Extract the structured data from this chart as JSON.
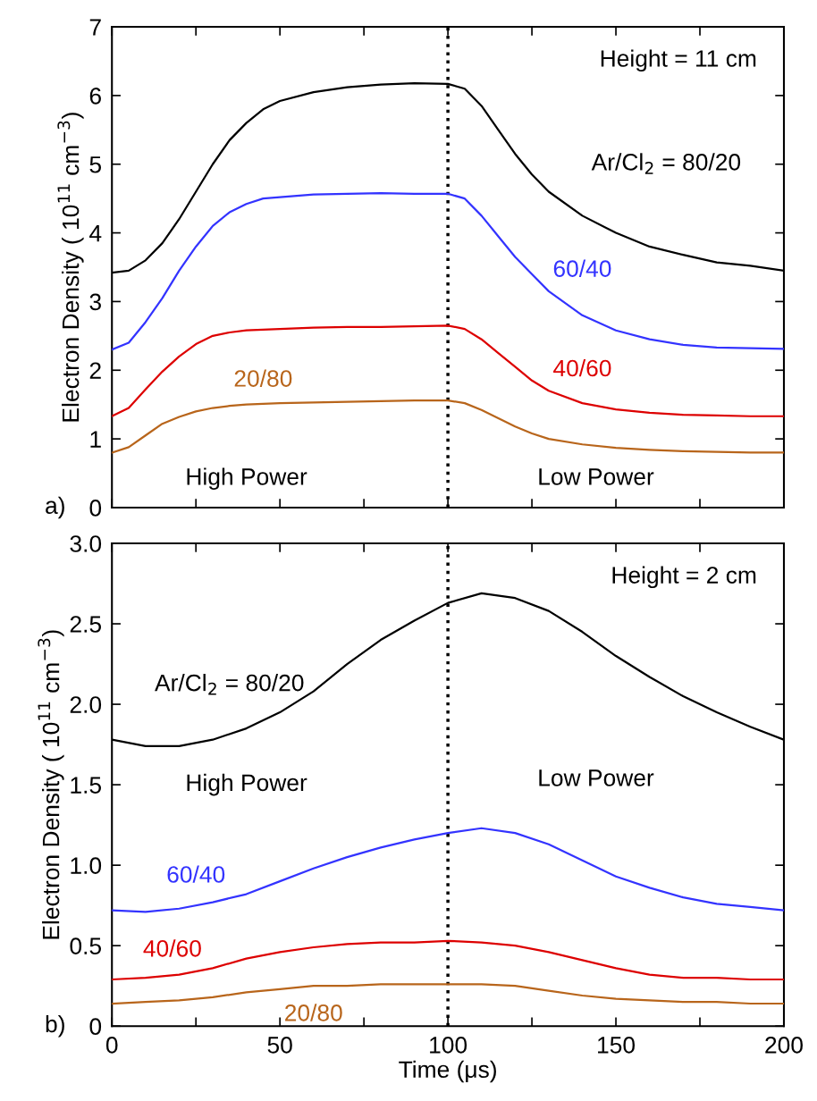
{
  "chart_data": [
    {
      "type": "line",
      "ylabel": "Electron Density ( 10$^{11}$ cm$^{−3}$)",
      "annotations": [
        "Height = 11 cm",
        "High Power",
        "Low Power",
        "a)"
      ],
      "x": [
        0,
        5,
        10,
        15,
        20,
        25,
        30,
        35,
        40,
        45,
        50,
        60,
        70,
        80,
        90,
        100,
        105,
        110,
        115,
        120,
        125,
        130,
        140,
        150,
        160,
        170,
        180,
        190,
        200
      ],
      "series": [
        {
          "name": "Ar/Cl$_{2}$ = 80/20",
          "color": "#000000",
          "values": [
            3.42,
            3.45,
            3.6,
            3.85,
            4.2,
            4.6,
            5.0,
            5.35,
            5.6,
            5.8,
            5.92,
            6.05,
            6.12,
            6.16,
            6.18,
            6.17,
            6.1,
            5.85,
            5.5,
            5.15,
            4.85,
            4.6,
            4.25,
            4.0,
            3.8,
            3.68,
            3.57,
            3.52,
            3.45
          ]
        },
        {
          "name": "60/40",
          "color": "#3333ff",
          "values": [
            2.3,
            2.4,
            2.7,
            3.05,
            3.45,
            3.8,
            4.1,
            4.3,
            4.42,
            4.5,
            4.52,
            4.56,
            4.57,
            4.58,
            4.57,
            4.57,
            4.5,
            4.25,
            3.95,
            3.65,
            3.4,
            3.15,
            2.8,
            2.58,
            2.45,
            2.37,
            2.33,
            2.32,
            2.31
          ]
        },
        {
          "name": "40/60",
          "color": "#dd0000",
          "values": [
            1.33,
            1.45,
            1.72,
            1.98,
            2.2,
            2.38,
            2.5,
            2.55,
            2.58,
            2.59,
            2.6,
            2.62,
            2.63,
            2.63,
            2.64,
            2.65,
            2.6,
            2.45,
            2.25,
            2.05,
            1.85,
            1.7,
            1.52,
            1.43,
            1.38,
            1.35,
            1.34,
            1.33,
            1.33
          ]
        },
        {
          "name": "20/80",
          "color": "#b8651b",
          "values": [
            0.8,
            0.88,
            1.05,
            1.22,
            1.32,
            1.4,
            1.45,
            1.48,
            1.5,
            1.51,
            1.52,
            1.53,
            1.54,
            1.55,
            1.56,
            1.56,
            1.52,
            1.42,
            1.3,
            1.18,
            1.08,
            1.0,
            0.92,
            0.87,
            0.84,
            0.82,
            0.81,
            0.8,
            0.8
          ]
        }
      ],
      "xlim": [
        0,
        200
      ],
      "ylim": [
        0,
        7
      ],
      "xticks": [
        0,
        {
          "value": 25,
          "label": null
        },
        50,
        {
          "value": 75,
          "label": null
        },
        100,
        {
          "value": 125,
          "label": null
        },
        150,
        {
          "value": 175,
          "label": null
        },
        200
      ],
      "yticks": [
        0,
        1,
        2,
        3,
        4,
        5,
        6,
        7
      ],
      "tick_labels": "y",
      "ref_lines": [
        {
          "axis": "x",
          "value": 100,
          "label": null,
          "color": "#000000",
          "line_style": "dotted"
        }
      ]
    },
    {
      "type": "line",
      "xlabel": "Time (μs)",
      "ylabel": "Electron Density ( 10$^{11}$ cm$^{−3}$)",
      "annotations": [
        "Height = 2 cm",
        "High Power",
        "Low Power",
        "b)"
      ],
      "x": [
        0,
        10,
        20,
        30,
        40,
        50,
        60,
        70,
        80,
        90,
        100,
        110,
        120,
        130,
        140,
        150,
        160,
        170,
        180,
        190,
        200
      ],
      "series": [
        {
          "name": "Ar/Cl$_{2}$ = 80/20",
          "color": "#000000",
          "values": [
            1.78,
            1.74,
            1.74,
            1.78,
            1.85,
            1.95,
            2.08,
            2.25,
            2.4,
            2.52,
            2.63,
            2.69,
            2.66,
            2.58,
            2.45,
            2.3,
            2.17,
            2.05,
            1.95,
            1.86,
            1.78
          ]
        },
        {
          "name": "60/40",
          "color": "#3333ff",
          "values": [
            0.72,
            0.71,
            0.73,
            0.77,
            0.82,
            0.9,
            0.98,
            1.05,
            1.11,
            1.16,
            1.2,
            1.23,
            1.2,
            1.13,
            1.03,
            0.93,
            0.86,
            0.8,
            0.76,
            0.74,
            0.72
          ]
        },
        {
          "name": "40/60",
          "color": "#dd0000",
          "values": [
            0.29,
            0.3,
            0.32,
            0.36,
            0.42,
            0.46,
            0.49,
            0.51,
            0.52,
            0.52,
            0.53,
            0.52,
            0.5,
            0.46,
            0.41,
            0.36,
            0.32,
            0.3,
            0.3,
            0.29,
            0.29
          ]
        },
        {
          "name": "20/80",
          "color": "#b8651b",
          "values": [
            0.14,
            0.15,
            0.16,
            0.18,
            0.21,
            0.23,
            0.25,
            0.25,
            0.26,
            0.26,
            0.26,
            0.26,
            0.25,
            0.22,
            0.19,
            0.17,
            0.16,
            0.15,
            0.15,
            0.14,
            0.14
          ]
        }
      ],
      "xlim": [
        0,
        200
      ],
      "ylim": [
        0,
        3
      ],
      "xticks": [
        0,
        {
          "value": 25,
          "label": null
        },
        50,
        {
          "value": 75,
          "label": null
        },
        100,
        {
          "value": 125,
          "label": null
        },
        150,
        {
          "value": 175,
          "label": null
        },
        200
      ],
      "yticks": [
        0,
        0.5,
        {
          "value": 1,
          "label": "1.0"
        },
        1.5,
        {
          "value": 2,
          "label": "2.0"
        },
        2.5,
        {
          "value": 3,
          "label": "3.0"
        }
      ],
      "ref_lines": [
        {
          "axis": "x",
          "value": 100,
          "label": null,
          "color": "#000000",
          "line_style": "dotted"
        }
      ]
    }
  ]
}
